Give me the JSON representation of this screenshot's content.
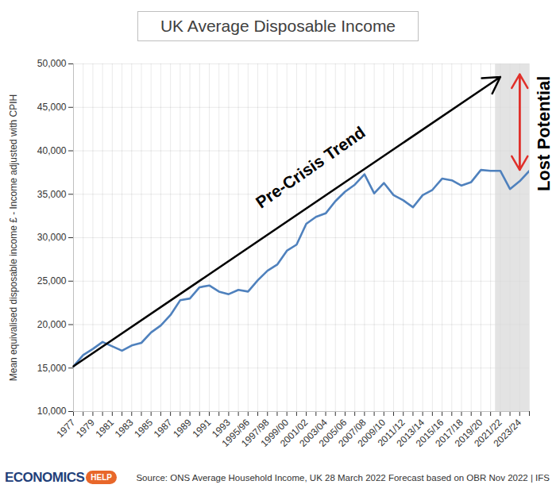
{
  "chart_data": {
    "type": "line",
    "title": "UK Average Disposable Income",
    "y_label": "Mean equivalised disposable income £ - Income adjusted with CPIH",
    "categories": [
      "1977",
      null,
      "1979",
      null,
      "1981",
      null,
      "1983",
      null,
      "1985",
      null,
      "1987",
      null,
      "1989",
      null,
      "1991",
      null,
      "1993",
      null,
      "1995/96",
      null,
      "1997/98",
      null,
      "1999/00",
      null,
      "2001/02",
      null,
      "2003/04",
      null,
      "2005/06",
      null,
      "2007/08",
      null,
      "2009/10",
      null,
      "2011/12",
      null,
      "2013/14",
      null,
      "2015/16",
      null,
      "2017/18",
      null,
      "2019/20",
      null,
      "2021/22",
      null,
      "2023/24",
      null
    ],
    "values": [
      15200,
      16500,
      17200,
      18000,
      17500,
      17000,
      17600,
      17900,
      19100,
      19900,
      21100,
      22800,
      23000,
      24300,
      24500,
      23800,
      23500,
      24000,
      23800,
      25100,
      26200,
      26900,
      28500,
      29200,
      31600,
      32400,
      32800,
      34200,
      35300,
      36100,
      37300,
      35100,
      36300,
      34900,
      34300,
      33500,
      34900,
      35500,
      36800,
      36600,
      36000,
      36400,
      37800,
      37700,
      37700,
      35600,
      36500,
      37700
    ],
    "color": "#4f81bd",
    "ylim": [
      10000,
      50000
    ],
    "yticks": [
      {
        "value": 10000,
        "label": "10,000"
      },
      {
        "value": 15000,
        "label": "15,000"
      },
      {
        "value": 20000,
        "label": "20,000"
      },
      {
        "value": 25000,
        "label": "25,000"
      },
      {
        "value": 30000,
        "label": "30,000"
      },
      {
        "value": 35000,
        "label": "35,000"
      },
      {
        "value": 40000,
        "label": "40,000"
      },
      {
        "value": 45000,
        "label": "45,000"
      },
      {
        "value": 50000,
        "label": "50,000"
      }
    ],
    "grid": true,
    "shaded_from": "2021/22",
    "annotations": [
      {
        "text": "Pre-Crisis Trend",
        "from": {
          "x": "1977",
          "y": 15200
        },
        "to": {
          "x": "2021/22",
          "y": 48500
        },
        "color": "#000000"
      },
      {
        "text": "Lost Potential",
        "x": "2023/24",
        "from": 37800,
        "to": 48800,
        "color": "#e0302a"
      }
    ],
    "logo": [
      "ECONOMICS",
      "HELP"
    ],
    "source": "Source: ONS Average Household Income, UK 28 March 2022 Forecast based on OBR Nov 2022 | IFS"
  }
}
